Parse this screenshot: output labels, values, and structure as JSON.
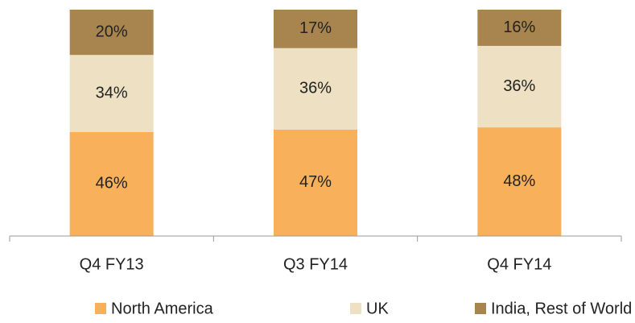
{
  "chart_data": {
    "type": "stacked_bar",
    "categories": [
      "Q4 FY13",
      "Q3 FY14",
      "Q4 FY14"
    ],
    "series": [
      {
        "name": "North America",
        "color": "#f8b05b",
        "values": [
          46,
          47,
          48
        ],
        "value_labels": [
          "46%",
          "47%",
          "48%"
        ]
      },
      {
        "name": "UK",
        "color": "#eee0c2",
        "values": [
          34,
          36,
          36
        ],
        "value_labels": [
          "34%",
          "36%",
          "36%"
        ]
      },
      {
        "name": "India, Rest of World",
        "color": "#a8844f",
        "values": [
          20,
          17,
          16
        ],
        "value_labels": [
          "20%",
          "17%",
          "16%"
        ]
      }
    ],
    "legend": "bottom"
  }
}
